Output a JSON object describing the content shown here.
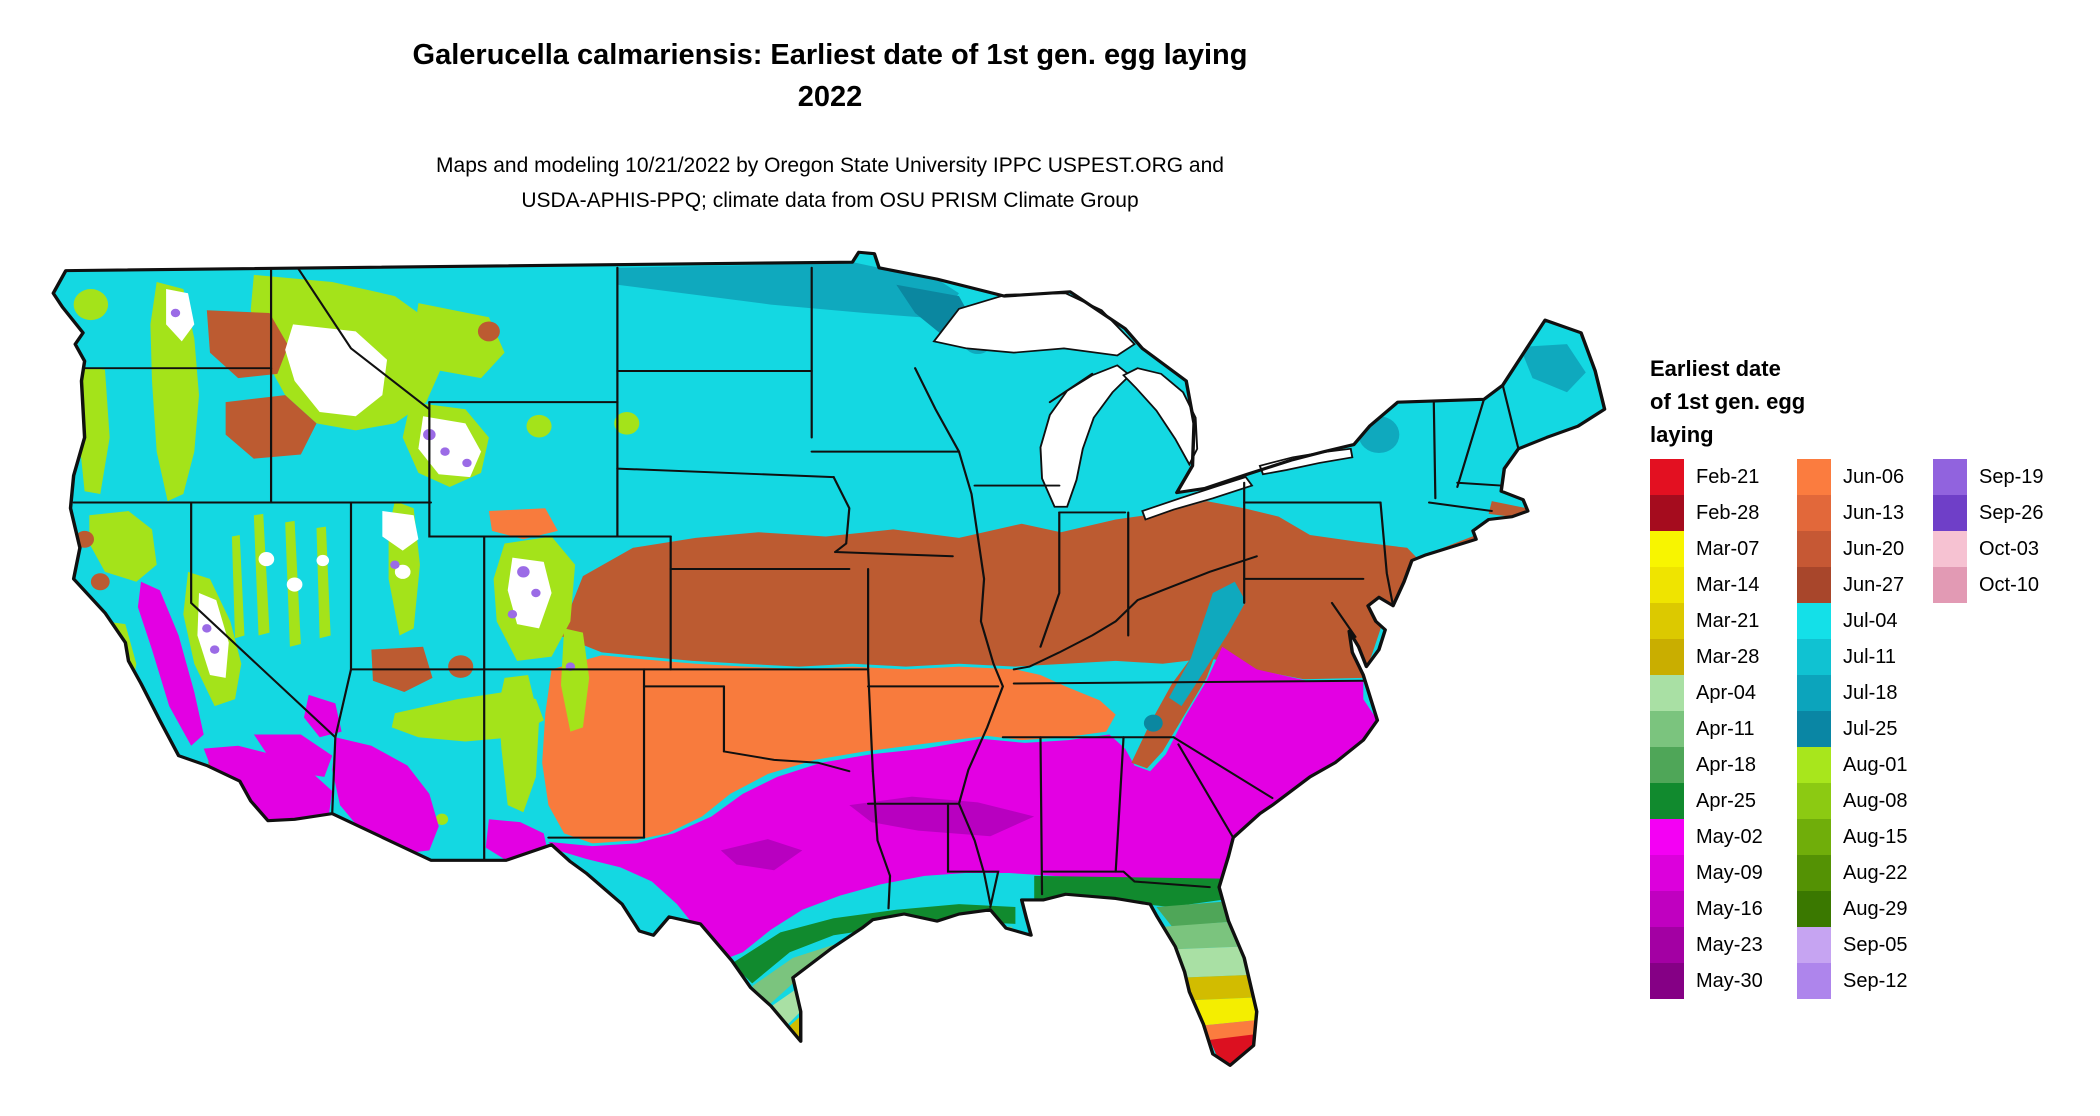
{
  "title": {
    "line1": "Galerucella calmariensis: Earliest date of 1st gen. egg laying",
    "line2": "2022"
  },
  "subtitle": {
    "line1": "Maps and modeling 10/21/2022 by Oregon State University IPPC USPEST.ORG and",
    "line2": "USDA-APHIS-PPQ; climate data from OSU PRISM Climate Group"
  },
  "legend": {
    "title_lines": [
      "Earliest date",
      "of 1st gen. egg",
      "laying"
    ]
  },
  "chart_data": {
    "type": "choropleth_map",
    "legend_title": "Earliest date of 1st gen. egg laying",
    "column_sizes": [
      15,
      15,
      4
    ],
    "categories": [
      "Feb-21",
      "Feb-28",
      "Mar-07",
      "Mar-14",
      "Mar-21",
      "Mar-28",
      "Apr-04",
      "Apr-11",
      "Apr-18",
      "Apr-25",
      "May-02",
      "May-09",
      "May-16",
      "May-23",
      "May-30",
      "Jun-06",
      "Jun-13",
      "Jun-20",
      "Jun-27",
      "Jul-04",
      "Jul-11",
      "Jul-18",
      "Jul-25",
      "Aug-01",
      "Aug-08",
      "Aug-15",
      "Aug-22",
      "Aug-29",
      "Sep-05",
      "Sep-12",
      "Sep-19",
      "Sep-26",
      "Oct-03",
      "Oct-10"
    ],
    "colors": [
      "#E31021",
      "#A50C1E",
      "#F8F500",
      "#EFE400",
      "#DCC900",
      "#C9AE00",
      "#A9E0A4",
      "#7BC47E",
      "#4FA658",
      "#118A2E",
      "#F400F4",
      "#DC00DC",
      "#C000C0",
      "#A300A3",
      "#850085",
      "#FB7C3F",
      "#E2683A",
      "#C65834",
      "#A8462B",
      "#14E0E8",
      "#10C2D2",
      "#0CA4BC",
      "#0A86A4",
      "#A8E61C",
      "#8CCA12",
      "#70AE0A",
      "#549204",
      "#3A7800",
      "#C6A4F2",
      "#AE85EC",
      "#9163DE",
      "#6F3FC8",
      "#F6C2D2",
      "#E29AB4"
    ]
  }
}
